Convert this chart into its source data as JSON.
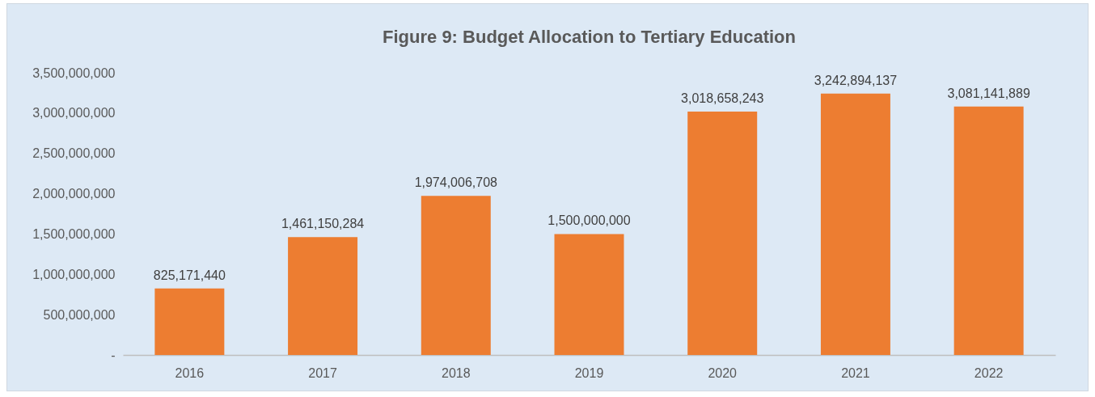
{
  "chart_data": {
    "type": "bar",
    "title": "Figure 9: Budget Allocation to Tertiary Education",
    "categories": [
      "2016",
      "2017",
      "2018",
      "2019",
      "2020",
      "2021",
      "2022"
    ],
    "values": [
      825171440,
      1461150284,
      1974006708,
      1500000000,
      3018658243,
      3242894137,
      3081141889
    ],
    "value_labels": [
      "825,171,440",
      "1,461,150,284",
      "1,974,006,708",
      "1,500,000,000",
      "3,018,658,243",
      "3,242,894,137",
      "3,081,141,889"
    ],
    "color": "#ed7d31",
    "grid": false,
    "ylim": [
      0,
      3500000000
    ],
    "yticks": [
      {
        "value": 0,
        "label": "-"
      },
      {
        "value": 500000000,
        "label": "500,000,000"
      },
      {
        "value": 1000000000,
        "label": "1,000,000,000"
      },
      {
        "value": 1500000000,
        "label": "1,500,000,000"
      },
      {
        "value": 2000000000,
        "label": "2,000,000,000"
      },
      {
        "value": 2500000000,
        "label": "2,500,000,000"
      },
      {
        "value": 3000000000,
        "label": "3,000,000,000"
      },
      {
        "value": 3500000000,
        "label": "3,500,000,000"
      }
    ]
  }
}
